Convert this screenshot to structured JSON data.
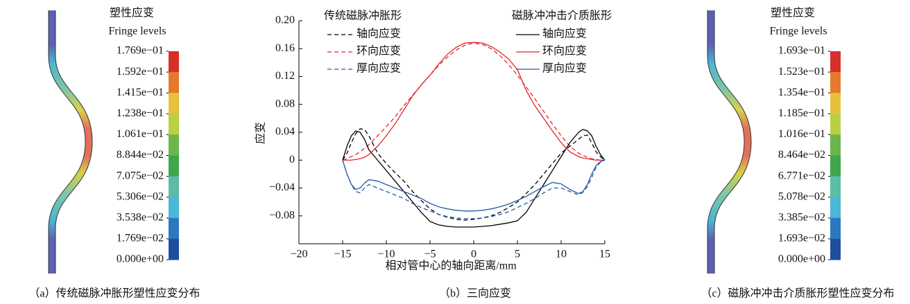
{
  "left_panel": {
    "title": "塑性应变",
    "subtitle": "Fringe levels",
    "levels": [
      "1.769e−01",
      "1.592e−01",
      "1.415e−01",
      "1.238e−01",
      "1.061e−01",
      "8.844e−02",
      "7.075e−02",
      "5.306e−02",
      "3.538e−02",
      "1.769e−02",
      "0.000e+00"
    ],
    "band_colors": [
      "#d7302a",
      "#e57a2c",
      "#e5c23a",
      "#b9cf44",
      "#6ab64a",
      "#3fa64b",
      "#5cbca6",
      "#4ab7d6",
      "#2c77bf",
      "#1e4f9f"
    ],
    "caption": "（a）传统磁脉冲胀形塑性应变分布"
  },
  "chart_data": {
    "type": "line",
    "caption": "（b）三向应变",
    "xlabel": "相对管中心的轴向距离/mm",
    "ylabel": "应变",
    "legend_groups": [
      "传统磁脉冲胀形",
      "磁脉冲冲击介质胀形"
    ],
    "x": [
      -15,
      -14.5,
      -14,
      -13.5,
      -13,
      -12.5,
      -12,
      -11,
      -10,
      -9,
      -8,
      -7,
      -6,
      -5,
      -4,
      -3,
      -2,
      -1,
      0,
      1,
      2,
      3,
      4,
      5,
      6,
      7,
      8,
      9,
      10,
      11,
      12,
      12.5,
      13,
      13.5,
      14,
      14.5,
      15
    ],
    "series": [
      {
        "name": "轴向应变",
        "group": 0,
        "dash": true,
        "color": "#000000",
        "values": [
          0,
          0.01,
          0.025,
          0.038,
          0.045,
          0.044,
          0.035,
          0.01,
          -0.005,
          -0.018,
          -0.03,
          -0.045,
          -0.058,
          -0.07,
          -0.078,
          -0.082,
          -0.085,
          -0.086,
          -0.085,
          -0.083,
          -0.08,
          -0.075,
          -0.068,
          -0.06,
          -0.048,
          -0.035,
          -0.02,
          -0.005,
          0.01,
          0.02,
          0.03,
          0.035,
          0.036,
          0.025,
          0.012,
          0.005,
          0
        ]
      },
      {
        "name": "环向应变",
        "group": 0,
        "dash": true,
        "color": "#e0262a",
        "values": [
          0,
          0.002,
          0.005,
          0.008,
          0.012,
          0.017,
          0.022,
          0.035,
          0.048,
          0.062,
          0.078,
          0.093,
          0.108,
          0.122,
          0.136,
          0.148,
          0.158,
          0.165,
          0.168,
          0.166,
          0.16,
          0.15,
          0.137,
          0.122,
          0.105,
          0.088,
          0.07,
          0.052,
          0.035,
          0.02,
          0.01,
          0.007,
          0.004,
          0.002,
          0.001,
          0,
          0
        ]
      },
      {
        "name": "厚向应变",
        "group": 0,
        "dash": true,
        "color": "#2459a8",
        "values": [
          0,
          -0.02,
          -0.035,
          -0.045,
          -0.047,
          -0.04,
          -0.035,
          -0.04,
          -0.045,
          -0.05,
          -0.055,
          -0.062,
          -0.068,
          -0.073,
          -0.078,
          -0.081,
          -0.083,
          -0.084,
          -0.084,
          -0.083,
          -0.081,
          -0.078,
          -0.074,
          -0.068,
          -0.062,
          -0.055,
          -0.047,
          -0.04,
          -0.04,
          -0.045,
          -0.05,
          -0.046,
          -0.038,
          -0.025,
          -0.01,
          -0.003,
          0
        ]
      },
      {
        "name": "轴向应变",
        "group": 1,
        "dash": false,
        "color": "#000000",
        "values": [
          0,
          0.02,
          0.035,
          0.042,
          0.04,
          0.03,
          0.015,
          0,
          -0.015,
          -0.03,
          -0.045,
          -0.06,
          -0.075,
          -0.088,
          -0.093,
          -0.095,
          -0.096,
          -0.096,
          -0.096,
          -0.095,
          -0.094,
          -0.092,
          -0.09,
          -0.087,
          -0.075,
          -0.055,
          -0.035,
          -0.015,
          0.005,
          0.025,
          0.04,
          0.044,
          0.042,
          0.035,
          0.02,
          0.008,
          0
        ]
      },
      {
        "name": "环向应变",
        "group": 1,
        "dash": false,
        "color": "#e0262a",
        "values": [
          0,
          0,
          0,
          0.001,
          0.002,
          0.004,
          0.008,
          0.02,
          0.035,
          0.052,
          0.072,
          0.092,
          0.108,
          0.122,
          0.138,
          0.152,
          0.162,
          0.168,
          0.169,
          0.168,
          0.163,
          0.155,
          0.145,
          0.13,
          0.1,
          0.078,
          0.06,
          0.042,
          0.025,
          0.012,
          0.005,
          0.003,
          0.002,
          0.001,
          0,
          0,
          0
        ]
      },
      {
        "name": "厚向应变",
        "group": 1,
        "dash": false,
        "color": "#2459a8",
        "values": [
          0,
          -0.02,
          -0.035,
          -0.042,
          -0.04,
          -0.033,
          -0.028,
          -0.03,
          -0.035,
          -0.04,
          -0.045,
          -0.05,
          -0.055,
          -0.062,
          -0.067,
          -0.07,
          -0.072,
          -0.073,
          -0.073,
          -0.072,
          -0.07,
          -0.067,
          -0.063,
          -0.058,
          -0.052,
          -0.045,
          -0.038,
          -0.032,
          -0.034,
          -0.042,
          -0.048,
          -0.045,
          -0.035,
          -0.02,
          -0.008,
          -0.002,
          0
        ]
      }
    ],
    "xlim": [
      -20,
      15
    ],
    "xticks": [
      {
        "value": -20,
        "label": "−20"
      },
      {
        "value": -15,
        "label": "−15"
      },
      {
        "value": -10,
        "label": "−10"
      },
      {
        "value": -5,
        "label": "−5"
      },
      0,
      5,
      10,
      15
    ],
    "ylim": [
      -0.12,
      0.2
    ],
    "yticks": [
      {
        "value": 0.2,
        "label": "0.20"
      },
      0.16,
      0.12,
      0.08,
      0.04,
      0,
      {
        "value": -0.04,
        "label": "−0.04"
      },
      {
        "value": -0.08,
        "label": "−0.08"
      }
    ],
    "grid": false
  },
  "right_panel": {
    "title": "塑性应变",
    "subtitle": "Fringe levels",
    "levels": [
      "1.693e−01",
      "1.523e−01",
      "1.354e−01",
      "1.185e−01",
      "1.016e−01",
      "8.464e−02",
      "6.771e−02",
      "5.078e−02",
      "3.385e−02",
      "1.693e−02",
      "0.000e+00"
    ],
    "band_colors": [
      "#d7302a",
      "#e57a2c",
      "#e5c23a",
      "#b9cf44",
      "#6ab64a",
      "#3fa64b",
      "#5cbca6",
      "#4ab7d6",
      "#2c77bf",
      "#1e4f9f"
    ],
    "caption": "（c）磁脉冲冲击介质胀形塑性应变分布"
  }
}
